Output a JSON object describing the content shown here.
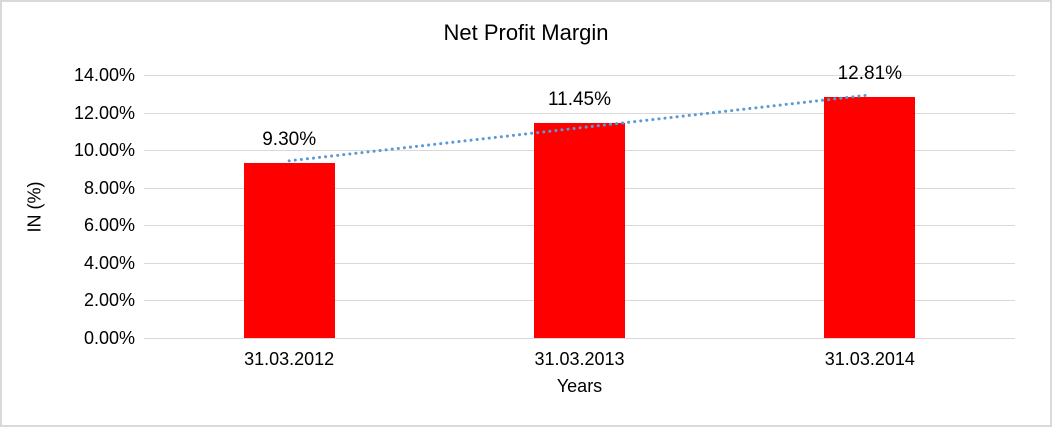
{
  "chart_data": {
    "type": "bar",
    "title": "Net Profit Margin",
    "xlabel": "Years",
    "ylabel": "IN (%)",
    "categories": [
      "31.03.2012",
      "31.03.2013",
      "31.03.2014"
    ],
    "values": [
      9.3,
      11.45,
      12.81
    ],
    "data_labels": [
      "9.30%",
      "11.45%",
      "12.81%"
    ],
    "ylim": [
      0,
      14
    ],
    "ytick_step": 2,
    "ytick_labels": [
      "0.00%",
      "2.00%",
      "4.00%",
      "6.00%",
      "8.00%",
      "10.00%",
      "12.00%",
      "14.00%"
    ],
    "grid": "horizontal",
    "legend": "none",
    "trendline": {
      "style": "dotted-round",
      "start_value": 9.43,
      "end_value": 12.94,
      "color": "#5b9bd5"
    },
    "colors": {
      "bar": "#ff0000",
      "gridline": "#d9d9d9",
      "text": "#000000",
      "border": "#d9d9d9",
      "background": "#ffffff"
    }
  }
}
